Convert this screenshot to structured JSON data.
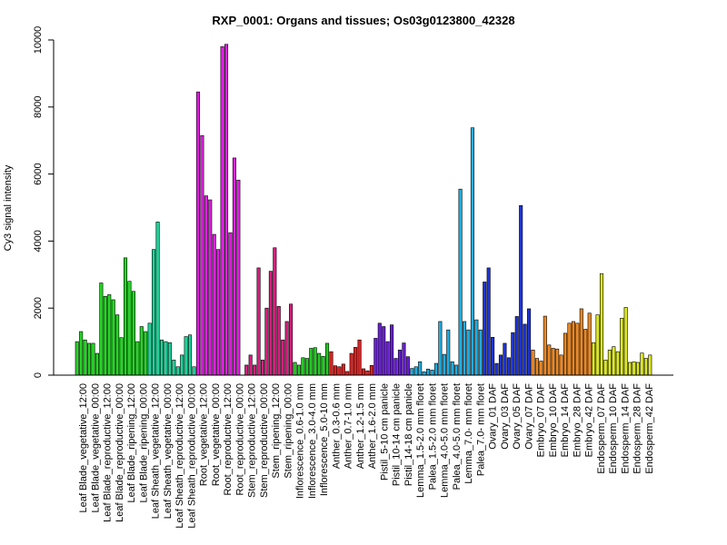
{
  "chart_data": {
    "type": "bar",
    "title": "RXP_0001: Organs and tissues; Os03g0123800_42328",
    "xlabel": "",
    "ylabel": "Cy3 signal intensity",
    "ylim": [
      0,
      10000
    ],
    "yticks": [
      0,
      2000,
      4000,
      6000,
      8000,
      10000
    ],
    "grid": false,
    "legend": "none",
    "groups": [
      {
        "labels": [
          "Leaf Blade_vegetative_12:00",
          "Leaf Blade_vegetative_00:00"
        ],
        "color": "#22d822",
        "values": [
          1000,
          1300,
          1050,
          950,
          950,
          650
        ]
      },
      {
        "labels": [
          "Leaf Blade_reproductive_12:00",
          "Leaf Blade_reproductive_00:00"
        ],
        "color": "#22d822",
        "values": [
          2750,
          2350,
          2400,
          2250,
          1800,
          1120
        ]
      },
      {
        "labels": [
          "Leaf Blade_ripening_12:00",
          "Leaf Blade_ripening_00:00"
        ],
        "color": "#22d822",
        "values": [
          3500,
          2800,
          2500,
          1000,
          1450,
          1300
        ]
      },
      {
        "labels": [
          "Leaf Sheath_vegetative_12:00",
          "Leaf Sheath_vegetative_00:00"
        ],
        "color": "#1ed49a",
        "values": [
          1550,
          3750,
          4570,
          1050,
          1000,
          970
        ]
      },
      {
        "labels": [
          "Leaf Sheath_reproductive_12:00",
          "Leaf Sheath_reproductive_00:00"
        ],
        "color": "#1ed49a",
        "values": [
          450,
          250,
          600,
          1150,
          1200,
          250
        ]
      },
      {
        "labels": [
          "Root_vegetative_12:00",
          "Root_vegetative_00:00"
        ],
        "color": "#e21ee2",
        "values": [
          8450,
          7150,
          5350,
          5230,
          4200,
          3750
        ]
      },
      {
        "labels": [
          "Root_reproductive_12:00",
          "Root_reproductive_00:00"
        ],
        "color": "#e21ee2",
        "values": [
          9800,
          9870,
          4250,
          6480,
          5820,
          0
        ]
      },
      {
        "labels": [
          "Stem_reproductive_12:00",
          "Stem_reproductive_00:00"
        ],
        "color": "#d81e7e",
        "values": [
          300,
          600,
          300,
          3200,
          450,
          2000
        ]
      },
      {
        "labels": [
          "Stem_ripening_12:00",
          "Stem_ripening_00:00"
        ],
        "color": "#d81e7e",
        "values": [
          3100,
          3800,
          2050,
          1050,
          1600,
          2120
        ]
      },
      {
        "labels": [
          "Inflorescence_0.6-1.0 mm",
          "Inflorescence_3.0-4.0 mm",
          "Inflorescence_5.0-10 mm"
        ],
        "color": "#22cc22",
        "values": [
          380,
          300,
          520,
          500,
          800,
          820,
          650,
          560,
          950
        ]
      },
      {
        "labels": [
          "Anther_0.3-0.6 mm",
          "Anther_0.7-1.0 mm",
          "Anther_1.2-1.5 mm",
          "Anther_1.6-2.0 mm"
        ],
        "color": "#e02020",
        "values": [
          700,
          280,
          250,
          330,
          110,
          650,
          830,
          1050,
          190,
          130,
          290
        ]
      },
      {
        "labels": [
          "Pistil_5-10 cm panicle",
          "Pistil_10-14 cm panicle",
          "Pistil_14-18 cm panicle"
        ],
        "color": "#6a1ed8",
        "values": [
          1100,
          1550,
          1450,
          1000,
          1500,
          500,
          750,
          960,
          550
        ]
      },
      {
        "labels": [
          "Lemma_1.5-2.0 mm floret",
          "Palea_1.5-2.0 mm floret",
          "Lemma_4.0-5.0 mm floret",
          "Palea_4.0-5.0 mm floret",
          "Lemma_7.0- mm floret",
          "Palea_7.0- mm floret"
        ],
        "color": "#1eaee2",
        "values": [
          200,
          250,
          400,
          100,
          180,
          150,
          350,
          1600,
          620,
          1350,
          400,
          300,
          5550,
          1600,
          1350,
          7380,
          1650,
          1350
        ]
      },
      {
        "labels": [
          "Ovary_01 DAF",
          "Ovary_03 DAF",
          "Ovary_05 DAF",
          "Ovary_07 DAF"
        ],
        "color": "#1e34d8",
        "values": [
          2780,
          3200,
          1130,
          350,
          600,
          950,
          520,
          1270,
          1750,
          5060,
          1520,
          1980
        ]
      },
      {
        "labels": [
          "Embryo_07 DAF",
          "Embryo_10 DAF",
          "Embryo_14 DAF",
          "Embryo_28 DAF",
          "Embryo_42 DAF"
        ],
        "color": "#ee8822",
        "values": [
          750,
          500,
          420,
          1760,
          900,
          800,
          780,
          600,
          1250,
          1550,
          1600,
          1550,
          1980,
          1370,
          1850
        ]
      },
      {
        "labels": [
          "Endosperm_07 DAF",
          "Endosperm_10 DAF",
          "Endosperm_14 DAF",
          "Endosperm_28 DAF",
          "Endosperm_42 DAF"
        ],
        "color": "#dde81e",
        "values": [
          970,
          1800,
          3030,
          450,
          750,
          850,
          700,
          1700,
          2020,
          380,
          400,
          380,
          660,
          500,
          600
        ]
      }
    ]
  }
}
